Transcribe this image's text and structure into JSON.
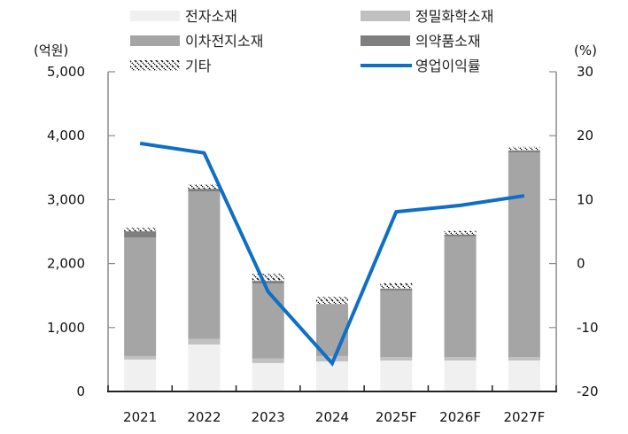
{
  "chart_data": {
    "type": "bar",
    "subtype": "stacked-bar-with-line",
    "title": "",
    "categories": [
      "2021",
      "2022",
      "2023",
      "2024",
      "2025F",
      "2026F",
      "2027F"
    ],
    "left_axis": {
      "unit_label": "(억원)",
      "ylim": [
        0,
        5000
      ],
      "ticks": [
        0,
        1000,
        2000,
        3000,
        4000,
        5000
      ],
      "tick_labels": [
        "0",
        "1,000",
        "2,000",
        "3,000",
        "4,000",
        "5,000"
      ]
    },
    "right_axis": {
      "unit_label": "(%)",
      "ylim": [
        -20,
        30
      ],
      "ticks": [
        -20,
        -10,
        0,
        10,
        20,
        30
      ],
      "tick_labels": [
        "-20",
        "-10",
        "0",
        "10",
        "20",
        "30"
      ]
    },
    "series": [
      {
        "name": "전자소재",
        "type": "bar",
        "axis": "left",
        "color": "#f0f0f0",
        "values": [
          500,
          735,
          445,
          470,
          485,
          485,
          485
        ]
      },
      {
        "name": "정밀화학소재",
        "type": "bar",
        "axis": "left",
        "color": "#c0c0c0",
        "values": [
          55,
          85,
          70,
          85,
          55,
          55,
          55
        ]
      },
      {
        "name": "이차전지소재",
        "type": "bar",
        "axis": "left",
        "color": "#a5a5a5",
        "values": [
          1855,
          2310,
          1175,
          815,
          1040,
          1885,
          3200
        ]
      },
      {
        "name": "의약품소재",
        "type": "bar",
        "axis": "left",
        "color": "#7f7f7f",
        "values": [
          95,
          40,
          40,
          0,
          30,
          30,
          30
        ]
      },
      {
        "name": "기타",
        "type": "bar",
        "axis": "left",
        "color": "#000000",
        "pattern": "hatch",
        "values": [
          55,
          70,
          110,
          110,
          85,
          55,
          55
        ]
      },
      {
        "name": "영업이익률",
        "type": "line",
        "axis": "right",
        "color": "#0f6fc6",
        "values": [
          18.8,
          17.3,
          -4.4,
          -15.6,
          8.1,
          9.1,
          10.6
        ]
      }
    ],
    "legend": {
      "position": "top",
      "entries": [
        "전자소재",
        "정밀화학소재",
        "이차전지소재",
        "의약품소재",
        "기타",
        "영업이익률"
      ]
    },
    "grid": false
  }
}
